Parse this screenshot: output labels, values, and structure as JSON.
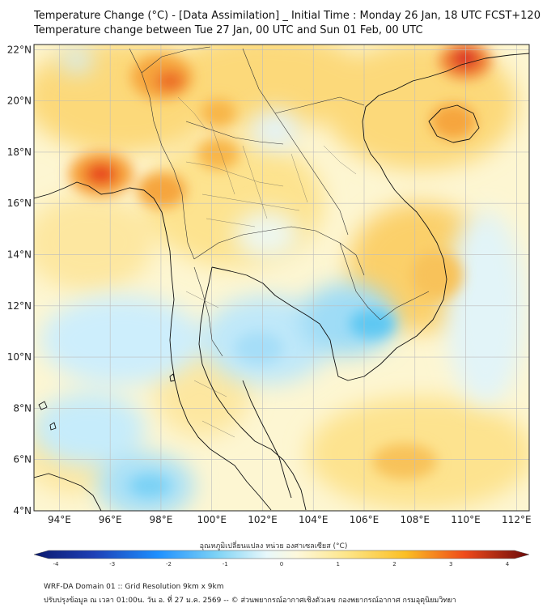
{
  "header": {
    "title_line1": "Temperature Change (°C) - [Data Assimilation] _ Initial Time : Monday 26 Jan, 18 UTC FCST+120",
    "title_line2": "Temperature change between Tue 27 Jan, 00 UTC and Sun 01 Feb, 00 UTC"
  },
  "axes": {
    "lon_labels": [
      "94°E",
      "96°E",
      "98°E",
      "100°E",
      "102°E",
      "104°E",
      "106°E",
      "108°E",
      "110°E",
      "112°E"
    ],
    "lat_labels": [
      "22°N",
      "20°N",
      "18°N",
      "16°N",
      "14°N",
      "12°N",
      "10°N",
      "8°N",
      "6°N",
      "4°N"
    ],
    "lon_range": [
      93,
      112.5
    ],
    "lat_range": [
      4,
      22.2
    ]
  },
  "colorbar": {
    "title": "อุณหภูมิเปลี่ยนแปลง หน่วย องศาเซลเซียส (°C)",
    "ticks": [
      "-4",
      "-3",
      "-2",
      "-1",
      "0",
      "1",
      "2",
      "3",
      "4"
    ],
    "range": [
      -4,
      4
    ]
  },
  "footer": {
    "line1": "WRF-DA Domain 01 :: Grid Resolution 9km x 9km",
    "line2": "ปรับปรุงข้อมูล ณ เวลา 01:00น. วัน อ. ที่ 27 ม.ค. 2569 -- © ส่วนพยากรณ์อากาศเชิงตัวเลข กองพยากรณ์อากาศ กรมอุตุนิยมวิทยา"
  },
  "colors": {
    "neutral": "#fdfbe2",
    "warm_light": "#fde68a",
    "warm": "#fbbf24",
    "warm_strong": "#f97316",
    "hot": "#dc2626",
    "cool": "#7dd3fc",
    "cold": "#0ea5e9",
    "coast": "#111111",
    "grid": "#b8b8b8"
  }
}
